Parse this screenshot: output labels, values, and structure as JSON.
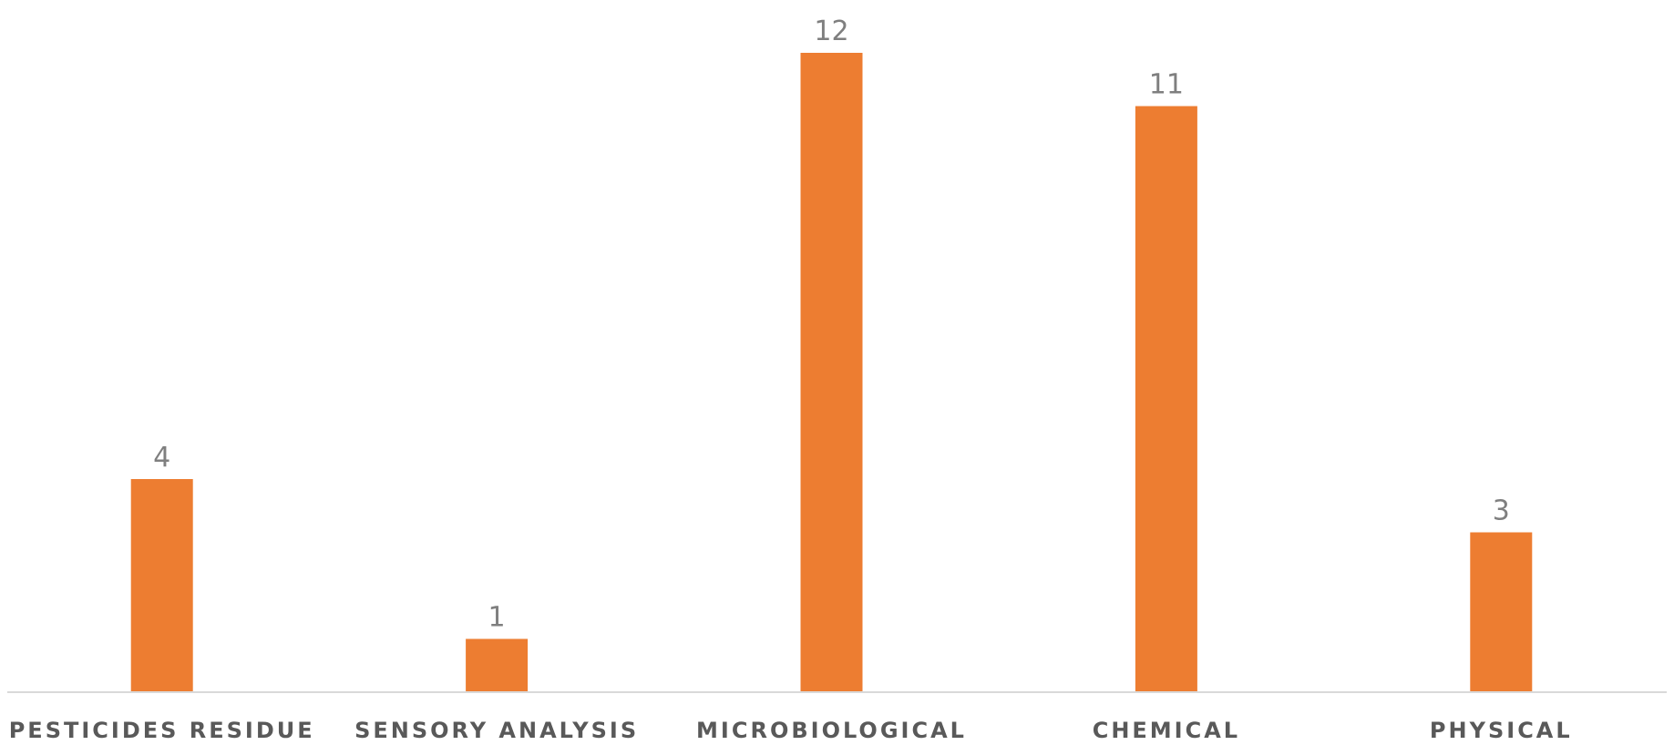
{
  "chart_data": {
    "type": "bar",
    "title": "",
    "xlabel": "",
    "ylabel": "",
    "categories": [
      "PESTICIDES RESIDUE",
      "SENSORY ANALYSIS",
      "MICROBIOLOGICAL",
      "CHEMICAL",
      "PHYSICAL"
    ],
    "values": [
      4,
      1,
      12,
      11,
      3
    ],
    "ylim": [
      0,
      12
    ],
    "grid": false,
    "legend": "none",
    "data_labels": true,
    "bar_color": "#ED7D31"
  }
}
